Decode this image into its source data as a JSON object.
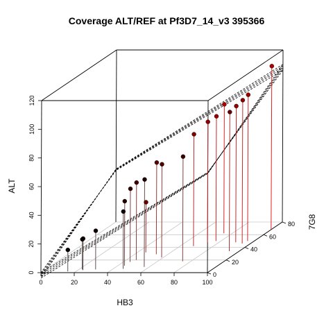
{
  "chart_data": {
    "type": "scatter3d",
    "title": "Coverage ALT/REF at Pf3D7_14_v3 395366",
    "xlabel": "HB3",
    "ylabel": "7G8",
    "zlabel": "ALT",
    "xlim": [
      0,
      100
    ],
    "ylim": [
      0,
      80
    ],
    "zlim": [
      0,
      120
    ],
    "x_ticks": [
      "0",
      "20",
      "40",
      "60",
      "80",
      "100"
    ],
    "y_ticks": [
      "0",
      "20",
      "40",
      "60",
      "80"
    ],
    "z_ticks": [
      "0",
      "20",
      "40",
      "60",
      "80",
      "100",
      "120"
    ],
    "grid": true,
    "colors": {
      "dark_point": "#000000",
      "light_point": "#b00000",
      "light_drop": "#e02020",
      "dark_drop": "#555555",
      "grid": "#c8c8c8"
    },
    "points": [
      {
        "x": 15,
        "y": 2,
        "z": 15
      },
      {
        "x": 22,
        "y": 5,
        "z": 21
      },
      {
        "x": 23,
        "y": 4,
        "z": 22
      },
      {
        "x": 30,
        "y": 5,
        "z": 27
      },
      {
        "x": 45,
        "y": 32,
        "z": 35
      },
      {
        "x": 46,
        "y": 6,
        "z": 40
      },
      {
        "x": 44,
        "y": 11,
        "z": 45
      },
      {
        "x": 44,
        "y": 17,
        "z": 51
      },
      {
        "x": 46,
        "y": 20,
        "z": 54
      },
      {
        "x": 53,
        "y": 29,
        "z": 64
      },
      {
        "x": 57,
        "y": 9,
        "z": 61
      },
      {
        "x": 59,
        "y": 24,
        "z": 65
      },
      {
        "x": 68,
        "y": 42,
        "z": 78
      },
      {
        "x": 75,
        "y": 18,
        "z": 73
      },
      {
        "x": 73,
        "y": 48,
        "z": 84
      },
      {
        "x": 77,
        "y": 50,
        "z": 87
      },
      {
        "x": 75,
        "y": 62,
        "z": 90
      },
      {
        "x": 90,
        "y": 48,
        "z": 95
      },
      {
        "x": 94,
        "y": 34,
        "z": 97
      },
      {
        "x": 95,
        "y": 46,
        "z": 100
      },
      {
        "x": 96,
        "y": 50,
        "z": 102
      },
      {
        "x": 100,
        "y": 68,
        "z": 114
      }
    ],
    "fit_planes": [
      {
        "intercept": 0.0,
        "slope_x": 0.7,
        "slope_y": 0.45
      },
      {
        "intercept": -1.2,
        "slope_x": 0.71,
        "slope_y": 0.47
      },
      {
        "intercept": -2.5,
        "slope_x": 0.72,
        "slope_y": 0.49
      },
      {
        "intercept": -3.8,
        "slope_x": 0.73,
        "slope_y": 0.51
      }
    ]
  }
}
